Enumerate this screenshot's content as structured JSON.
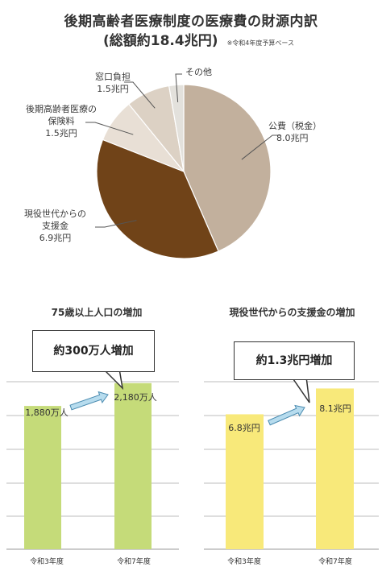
{
  "title_line1": "後期高齢者医療制度の医療費の財源内訳",
  "title_line2": "(総額約18.4兆円)",
  "title_note": "※令和4年度予算ベース",
  "chart_data": [
    {
      "type": "pie",
      "title": "後期高齢者医療制度の医療費の財源内訳",
      "total": 18.4,
      "unit": "兆円",
      "slices": [
        {
          "name": "公費（税金）",
          "value": 8.0,
          "value_label": "8.0兆円",
          "color": "#c2b09d"
        },
        {
          "name": "現役世代からの支援金",
          "name_lines": [
            "現役世代からの",
            "支援金"
          ],
          "value": 6.9,
          "value_label": "6.9兆円",
          "color": "#704318"
        },
        {
          "name": "後期高齢者医療の保険料",
          "name_lines": [
            "後期高齢者医療の",
            "保険料"
          ],
          "value": 1.5,
          "value_label": "1.5兆円",
          "color": "#e8dfd5"
        },
        {
          "name": "窓口負担",
          "value": 1.5,
          "value_label": "1.5兆円",
          "color": "#dcd1c4"
        },
        {
          "name": "その他",
          "value": 0.5,
          "value_label": "",
          "color": "#e3e1dc"
        }
      ]
    },
    {
      "type": "bar",
      "title": "75歳以上人口の増加",
      "callout": "約300万人増加",
      "categories": [
        "令和3年度",
        "令和7年度"
      ],
      "values": [
        1880,
        2180
      ],
      "value_labels": [
        "1,880万人",
        "2,180万人"
      ],
      "ylim": [
        0,
        2600
      ],
      "color": "#c5db79"
    },
    {
      "type": "bar",
      "title": "現役世代からの支援金の増加",
      "callout": "約1.3兆円増加",
      "categories": [
        "令和3年度",
        "令和7年度"
      ],
      "values": [
        6.8,
        8.1
      ],
      "value_labels": [
        "6.8兆円",
        "8.1兆円"
      ],
      "ylim": [
        0,
        9.7
      ],
      "color": "#f8e97a"
    }
  ]
}
